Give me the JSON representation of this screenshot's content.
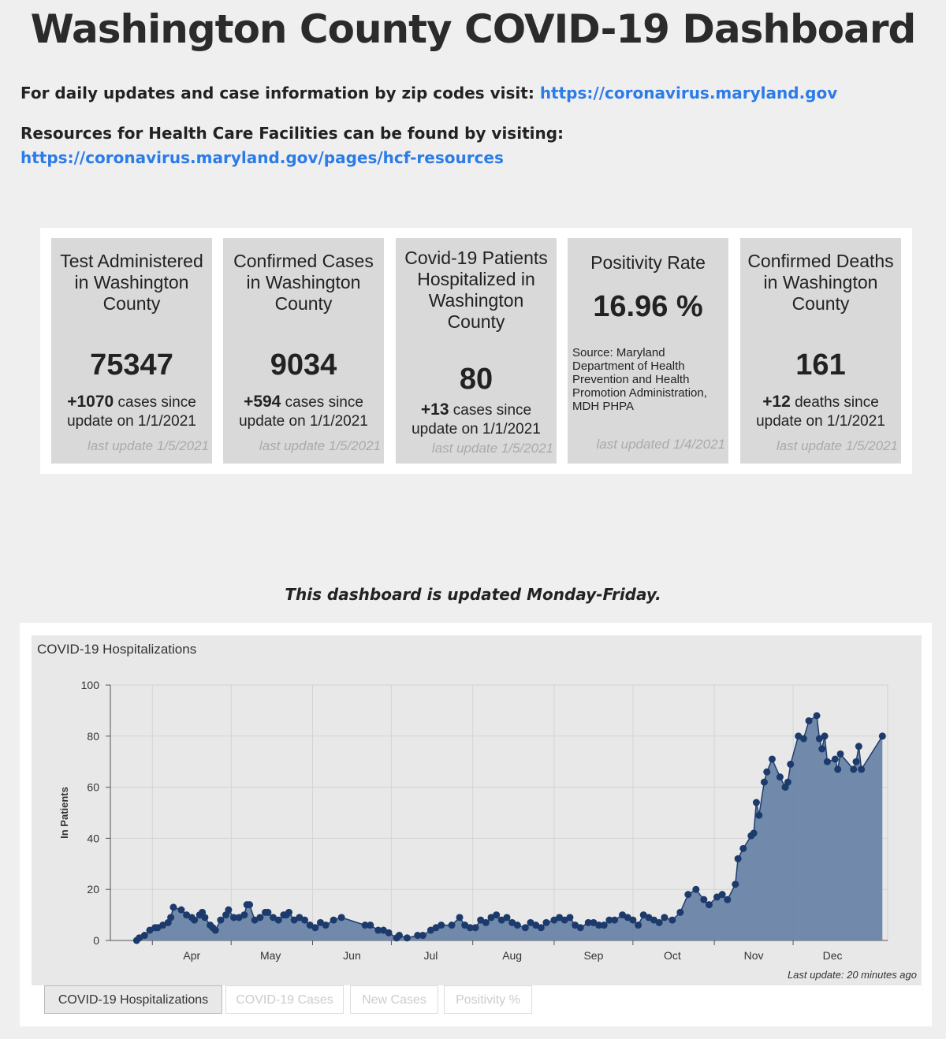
{
  "header": {
    "title": "Washington County COVID-19 Dashboard",
    "line1_text": "For daily updates and case information by zip codes visit: ",
    "line1_link": "https://coronavirus.maryland.gov",
    "line2_text": "Resources for Health Care Facilities can be found by visiting: ",
    "line2_link": "https://coronavirus.maryland.gov/pages/hcf-resources"
  },
  "stats": {
    "tests": {
      "label": "Test Administered in Washington County",
      "value": "75347",
      "delta": "+1070",
      "delta_text": " cases since update on 1/1/2021",
      "updated": "last update 1/5/2021"
    },
    "cases": {
      "label": "Confirmed Cases in Washington County",
      "value": "9034",
      "delta": "+594",
      "delta_text": " cases since update on 1/1/2021",
      "updated": "last update 1/5/2021"
    },
    "hospitalized": {
      "label": "Covid-19 Patients Hospitalized in Washington County",
      "value": "80",
      "delta": "+13",
      "delta_text": " cases since update on 1/1/2021",
      "updated": "last update 1/5/2021"
    },
    "positivity": {
      "label": "Positivity Rate",
      "value": "16.96 %",
      "source": "Source: Maryland Department of Health Prevention and Health Promotion Administration, MDH PHPA",
      "updated": "last updated 1/4/2021"
    },
    "deaths": {
      "label": "Confirmed Deaths in Washington County",
      "value": "161",
      "delta": "+12",
      "delta_text": " deaths since update on 1/1/2021",
      "updated": "last update 1/5/2021"
    }
  },
  "notice": "This dashboard is updated Monday-Friday.",
  "chart": {
    "title": "COVID-19 Hospitalizations",
    "last_update": "Last update: 20 minutes ago",
    "tabs": [
      "COVID-19 Hospitalizations",
      "COVID-19 Cases",
      "New Cases",
      "Positivity %"
    ]
  },
  "colors": {
    "accent_link": "#2b7be8",
    "area_fill": "#6a84a6",
    "line": "#1f3e6c",
    "marker": "#1c3a6b"
  },
  "chart_data": {
    "type": "area",
    "title": "COVID-19 Hospitalizations",
    "xlabel": "",
    "ylabel": "In Patients",
    "ylim": [
      0,
      100
    ],
    "yticks": [
      0,
      20,
      40,
      60,
      80,
      100
    ],
    "xlim": [
      "2020-03-15",
      "2021-01-05"
    ],
    "xticks": [
      {
        "label": "Apr",
        "date": "2020-04-15"
      },
      {
        "label": "May",
        "date": "2020-05-15"
      },
      {
        "label": "Jun",
        "date": "2020-06-15"
      },
      {
        "label": "Jul",
        "date": "2020-07-15"
      },
      {
        "label": "Aug",
        "date": "2020-08-15"
      },
      {
        "label": "Sep",
        "date": "2020-09-15"
      },
      {
        "label": "Oct",
        "date": "2020-10-15"
      },
      {
        "label": "Nov",
        "date": "2020-11-15"
      },
      {
        "label": "Dec",
        "date": "2020-12-15"
      }
    ],
    "grid": true,
    "series": [
      {
        "name": "",
        "points": [
          [
            "2020-03-25",
            0
          ],
          [
            "2020-03-26",
            1
          ],
          [
            "2020-03-28",
            2
          ],
          [
            "2020-03-30",
            4
          ],
          [
            "2020-04-01",
            5
          ],
          [
            "2020-04-02",
            5
          ],
          [
            "2020-04-04",
            6
          ],
          [
            "2020-04-06",
            7
          ],
          [
            "2020-04-07",
            9
          ],
          [
            "2020-04-08",
            13
          ],
          [
            "2020-04-11",
            12
          ],
          [
            "2020-04-13",
            10
          ],
          [
            "2020-04-15",
            9
          ],
          [
            "2020-04-16",
            8
          ],
          [
            "2020-04-18",
            10
          ],
          [
            "2020-04-19",
            11
          ],
          [
            "2020-04-20",
            9
          ],
          [
            "2020-04-22",
            6
          ],
          [
            "2020-04-23",
            5
          ],
          [
            "2020-04-24",
            4
          ],
          [
            "2020-04-26",
            8
          ],
          [
            "2020-04-28",
            10
          ],
          [
            "2020-04-29",
            12
          ],
          [
            "2020-05-01",
            9
          ],
          [
            "2020-05-03",
            9
          ],
          [
            "2020-05-05",
            10
          ],
          [
            "2020-05-06",
            14
          ],
          [
            "2020-05-07",
            14
          ],
          [
            "2020-05-09",
            8
          ],
          [
            "2020-05-11",
            9
          ],
          [
            "2020-05-13",
            11
          ],
          [
            "2020-05-14",
            11
          ],
          [
            "2020-05-16",
            9
          ],
          [
            "2020-05-18",
            8
          ],
          [
            "2020-05-20",
            10
          ],
          [
            "2020-05-21",
            10
          ],
          [
            "2020-05-22",
            11
          ],
          [
            "2020-05-24",
            8
          ],
          [
            "2020-05-26",
            9
          ],
          [
            "2020-05-28",
            8
          ],
          [
            "2020-05-30",
            6
          ],
          [
            "2020-06-01",
            5
          ],
          [
            "2020-06-03",
            7
          ],
          [
            "2020-06-05",
            6
          ],
          [
            "2020-06-08",
            8
          ],
          [
            "2020-06-11",
            9
          ],
          [
            "2020-06-20",
            6
          ],
          [
            "2020-06-22",
            6
          ],
          [
            "2020-06-25",
            4
          ],
          [
            "2020-06-27",
            4
          ],
          [
            "2020-06-29",
            3
          ],
          [
            "2020-07-02",
            1
          ],
          [
            "2020-07-03",
            2
          ],
          [
            "2020-07-06",
            1
          ],
          [
            "2020-07-10",
            2
          ],
          [
            "2020-07-12",
            2
          ],
          [
            "2020-07-15",
            4
          ],
          [
            "2020-07-17",
            5
          ],
          [
            "2020-07-19",
            6
          ],
          [
            "2020-07-23",
            6
          ],
          [
            "2020-07-26",
            9
          ],
          [
            "2020-07-28",
            6
          ],
          [
            "2020-07-30",
            5
          ],
          [
            "2020-08-01",
            5
          ],
          [
            "2020-08-03",
            8
          ],
          [
            "2020-08-05",
            7
          ],
          [
            "2020-08-07",
            9
          ],
          [
            "2020-08-09",
            10
          ],
          [
            "2020-08-11",
            8
          ],
          [
            "2020-08-13",
            9
          ],
          [
            "2020-08-15",
            7
          ],
          [
            "2020-08-17",
            6
          ],
          [
            "2020-08-20",
            5
          ],
          [
            "2020-08-22",
            7
          ],
          [
            "2020-08-24",
            6
          ],
          [
            "2020-08-26",
            5
          ],
          [
            "2020-08-28",
            7
          ],
          [
            "2020-08-31",
            8
          ],
          [
            "2020-09-02",
            9
          ],
          [
            "2020-09-04",
            8
          ],
          [
            "2020-09-06",
            9
          ],
          [
            "2020-09-08",
            6
          ],
          [
            "2020-09-10",
            5
          ],
          [
            "2020-09-13",
            7
          ],
          [
            "2020-09-15",
            7
          ],
          [
            "2020-09-17",
            6
          ],
          [
            "2020-09-19",
            6
          ],
          [
            "2020-09-21",
            8
          ],
          [
            "2020-09-23",
            8
          ],
          [
            "2020-09-26",
            10
          ],
          [
            "2020-09-28",
            9
          ],
          [
            "2020-09-30",
            8
          ],
          [
            "2020-10-02",
            6
          ],
          [
            "2020-10-04",
            10
          ],
          [
            "2020-10-06",
            9
          ],
          [
            "2020-10-08",
            8
          ],
          [
            "2020-10-10",
            7
          ],
          [
            "2020-10-12",
            9
          ],
          [
            "2020-10-15",
            8
          ],
          [
            "2020-10-18",
            11
          ],
          [
            "2020-10-21",
            18
          ],
          [
            "2020-10-24",
            20
          ],
          [
            "2020-10-27",
            16
          ],
          [
            "2020-10-29",
            14
          ],
          [
            "2020-11-01",
            17
          ],
          [
            "2020-11-03",
            18
          ],
          [
            "2020-11-05",
            16
          ],
          [
            "2020-11-08",
            22
          ],
          [
            "2020-11-09",
            32
          ],
          [
            "2020-11-11",
            36
          ],
          [
            "2020-11-14",
            41
          ],
          [
            "2020-11-15",
            42
          ],
          [
            "2020-11-16",
            54
          ],
          [
            "2020-11-17",
            49
          ],
          [
            "2020-11-19",
            62
          ],
          [
            "2020-11-20",
            66
          ],
          [
            "2020-11-22",
            71
          ],
          [
            "2020-11-25",
            64
          ],
          [
            "2020-11-27",
            60
          ],
          [
            "2020-11-28",
            62
          ],
          [
            "2020-11-29",
            69
          ],
          [
            "2020-12-02",
            80
          ],
          [
            "2020-12-04",
            79
          ],
          [
            "2020-12-06",
            86
          ],
          [
            "2020-12-09",
            88
          ],
          [
            "2020-12-10",
            79
          ],
          [
            "2020-12-11",
            75
          ],
          [
            "2020-12-12",
            80
          ],
          [
            "2020-12-13",
            70
          ],
          [
            "2020-12-16",
            71
          ],
          [
            "2020-12-17",
            67
          ],
          [
            "2020-12-18",
            73
          ],
          [
            "2020-12-23",
            67
          ],
          [
            "2020-12-24",
            70
          ],
          [
            "2020-12-25",
            76
          ],
          [
            "2020-12-26",
            67
          ],
          [
            "2021-01-03",
            80
          ]
        ]
      }
    ]
  }
}
